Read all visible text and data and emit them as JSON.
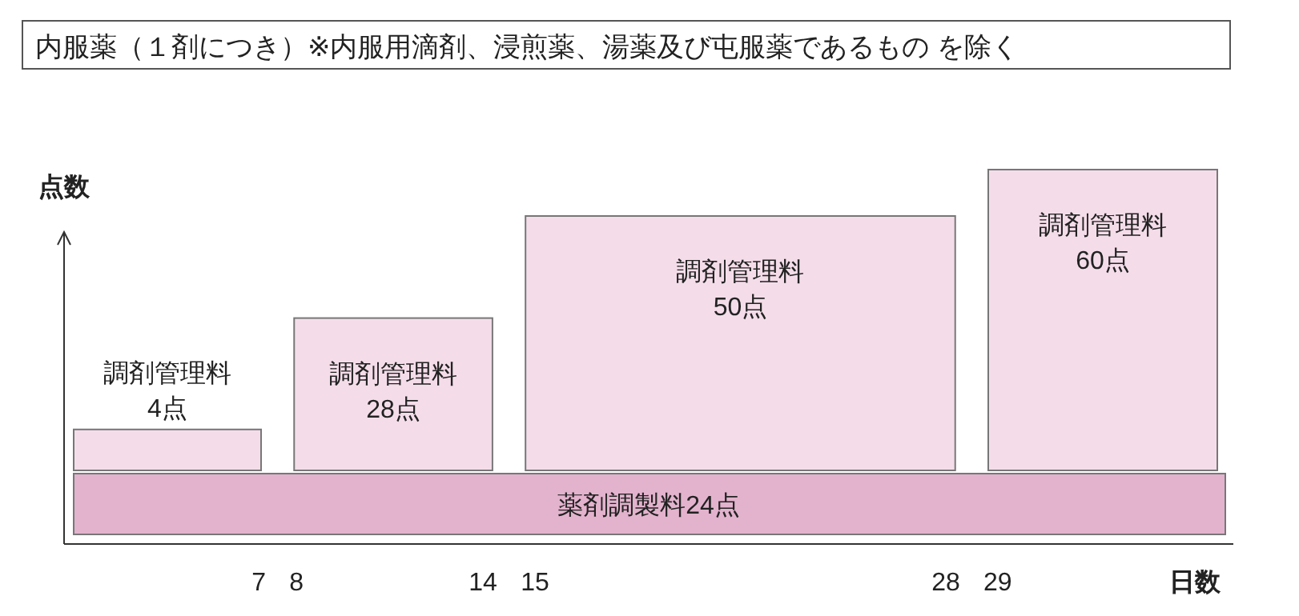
{
  "chart_data": {
    "type": "other",
    "title": "内服薬（１剤につき）※内服用滴剤、浸煎薬、湯薬及び屯服薬であるもの を除く",
    "ylabel": "点数",
    "xlabel": "日数",
    "categories": [
      "調剤管理料",
      "調剤管理料",
      "調剤管理料",
      "調剤管理料"
    ],
    "values": [
      4,
      28,
      50,
      60
    ],
    "value_labels": [
      "4点",
      "28点",
      "50点",
      "60点"
    ],
    "color": "#f4dde9",
    "annotations": [
      "7",
      "8",
      "14",
      "15",
      "28",
      "29"
    ],
    "bands": [
      {
        "axis": "y",
        "label": "薬剤調製料24点",
        "color": "#e3b3cd"
      }
    ]
  }
}
